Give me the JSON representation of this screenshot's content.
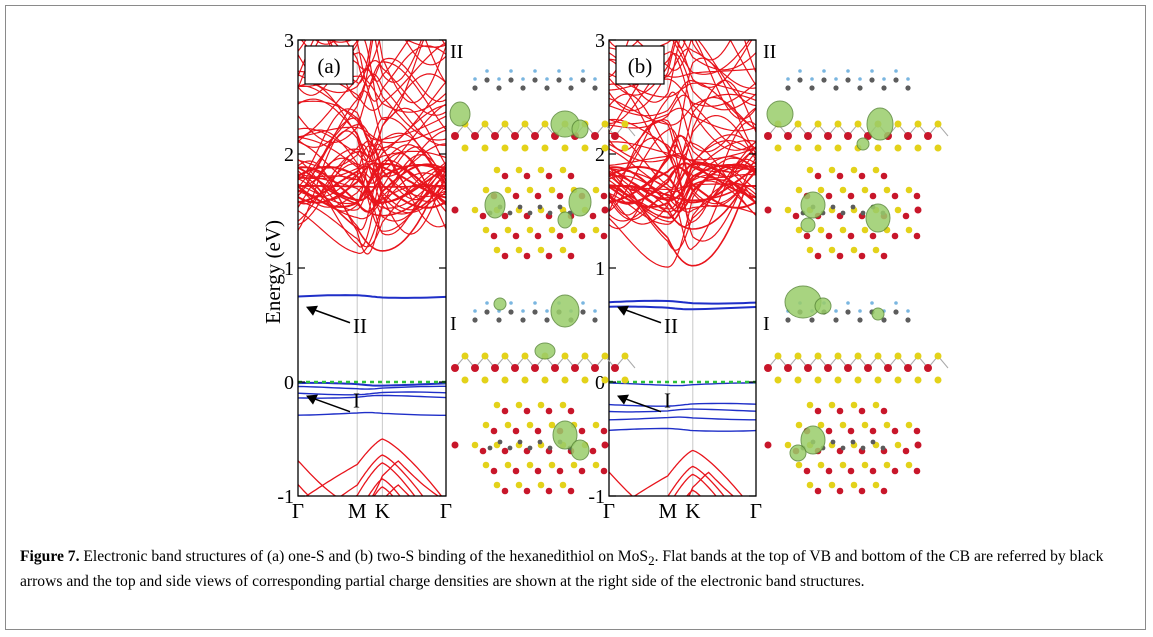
{
  "figure": {
    "y_axis_label": "Energy (eV)",
    "y_ticks": [
      "3",
      "2",
      "1",
      "0",
      "-1"
    ],
    "x_ticks": [
      "Γ",
      "M",
      "K",
      "Γ"
    ],
    "panels": [
      {
        "label": "(a)",
        "arrow_labels": [
          "II",
          "I"
        ]
      },
      {
        "label": "(b)",
        "arrow_labels": [
          "II",
          "I"
        ]
      }
    ],
    "density_labels": [
      "II",
      "I"
    ],
    "colors": {
      "conduction": "#e8141c",
      "valence_flat": "#1f2fc8",
      "fermi": "#2bbf3a",
      "sulfur": "#e3d21a",
      "molybdenum": "#c8162a",
      "charge": "#9acd6a"
    }
  },
  "chart_data": {
    "type": "line",
    "title": "",
    "xlabel": "",
    "ylabel": "Energy (eV)",
    "ylim": [
      -1,
      3
    ],
    "x_ticks": [
      "Γ",
      "M",
      "K",
      "Γ"
    ],
    "panels": [
      {
        "label": "(a)",
        "flat_bands_eV": [
          0.75,
          -0.02,
          -0.05,
          -0.1,
          -0.13,
          -0.28
        ],
        "cb_minimum_eV": 1.15,
        "vb_maximum_eV": -0.5,
        "fermi_level_eV": 0
      },
      {
        "label": "(b)",
        "flat_bands_eV": [
          0.7,
          0.65,
          -0.02,
          -0.2,
          -0.25,
          -0.32,
          -0.42
        ],
        "cb_minimum_eV": 1.02,
        "vb_maximum_eV": -0.6,
        "fermi_level_eV": 0
      }
    ]
  },
  "caption": {
    "label": "Figure 7.",
    "text": " Electronic band structures of (a) one-S and (b) two-S binding of the hexanedithiol on MoS",
    "sub": "2",
    "text2": ". Flat bands at the top of VB and bottom of the CB are referred by black arrows and the top and side views of corresponding partial charge densities are shown at the right side of the electronic band structures."
  }
}
